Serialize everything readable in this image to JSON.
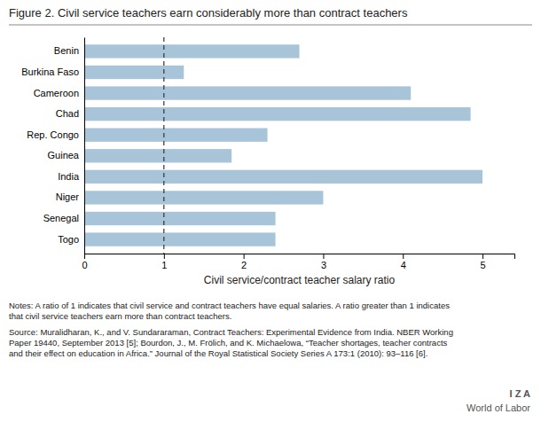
{
  "chart_data": {
    "type": "bar",
    "orientation": "horizontal",
    "title": "Figure 2. Civil service teachers earn considerably more than contract teachers",
    "categories": [
      "Togo",
      "Senegal",
      "Niger",
      "India",
      "Guinea",
      "Rep. Congo",
      "Chad",
      "Cameroon",
      "Burkina Faso",
      "Benin"
    ],
    "values": [
      2.4,
      2.4,
      3.0,
      5.0,
      1.85,
      2.3,
      4.85,
      4.1,
      1.25,
      2.7
    ],
    "color": "#a8c4d8",
    "xlabel": "Civil service/contract teacher salary ratio",
    "xlim": [
      0,
      5.4
    ],
    "xticks": [
      0,
      1,
      2,
      3,
      4,
      5
    ],
    "reference_line": 1.0,
    "annotations": [
      "Notes: A ratio of 1 indicates that civil service and contract teachers have equal salaries. A ratio greater than 1 indicates\nthat civil service teachers earn more than contract teachers.",
      "Source: Muralidharan, K., and V. Sundararaman, Contract Teachers: Experimental Evidence from India. NBER Working\nPaper 19440, September 2013 [5]; Bourdon, J., M. Frölich, and K. Michaelowa, “Teacher shortages, teacher contracts\nand their effect on education in Africa.” Journal of the Royal Statistical Society Series A 173:1 (2010): 93–116 [6].",
      "I Z A",
      "World of Labor"
    ]
  }
}
